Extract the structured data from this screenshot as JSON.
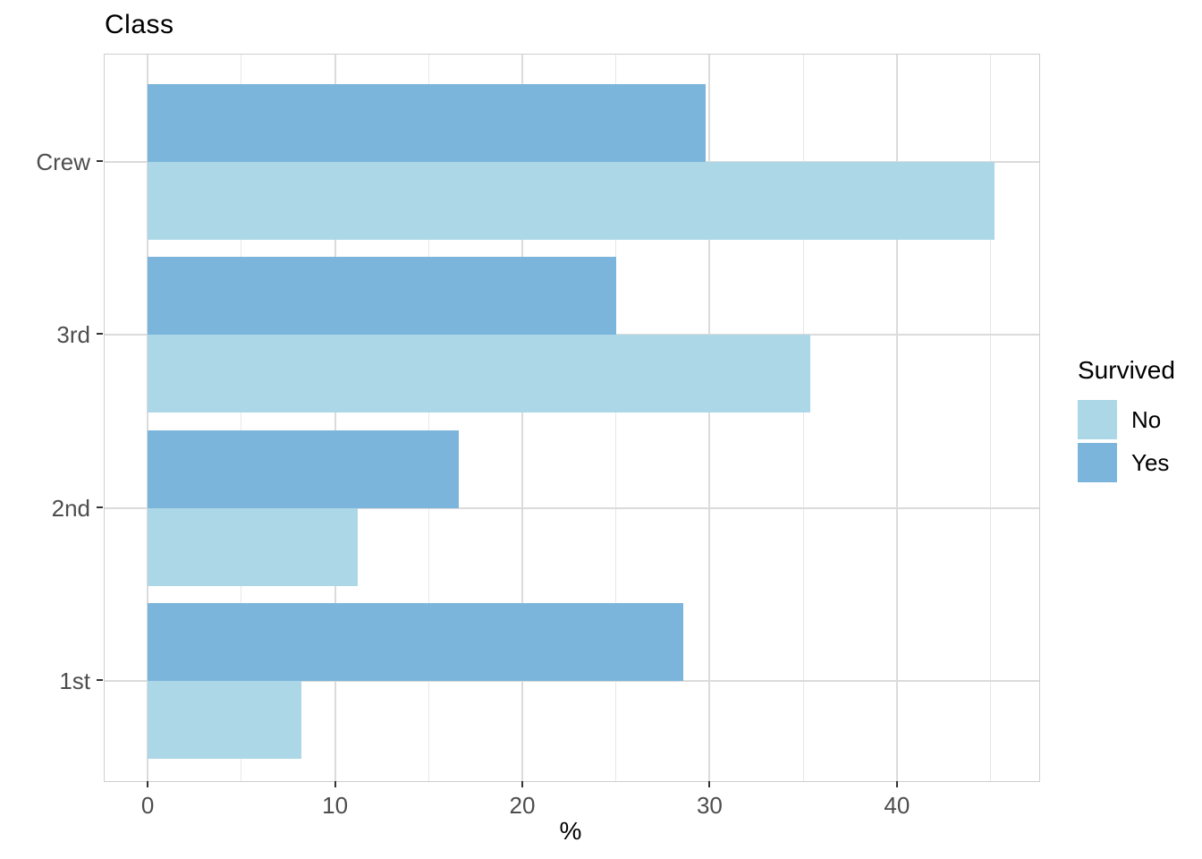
{
  "chart_data": {
    "type": "bar",
    "orientation": "horizontal",
    "title": "Class",
    "xlabel": "%",
    "ylabel": "",
    "categories": [
      "Crew",
      "3rd",
      "2nd",
      "1st"
    ],
    "series": [
      {
        "name": "No",
        "color": "#acd7e6",
        "values": [
          45.2,
          35.4,
          11.2,
          8.2
        ]
      },
      {
        "name": "Yes",
        "color": "#7cb5dc",
        "values": [
          29.8,
          25.0,
          16.6,
          28.6
        ]
      }
    ],
    "x_ticks": [
      0,
      10,
      20,
      30,
      40
    ],
    "x_minor_ticks": [
      5,
      15,
      25,
      35,
      45
    ],
    "xlim": [
      -2.3,
      47.6
    ],
    "grid": true,
    "legend": {
      "title": "Survived",
      "position": "right",
      "entries": [
        "No",
        "Yes"
      ]
    }
  }
}
